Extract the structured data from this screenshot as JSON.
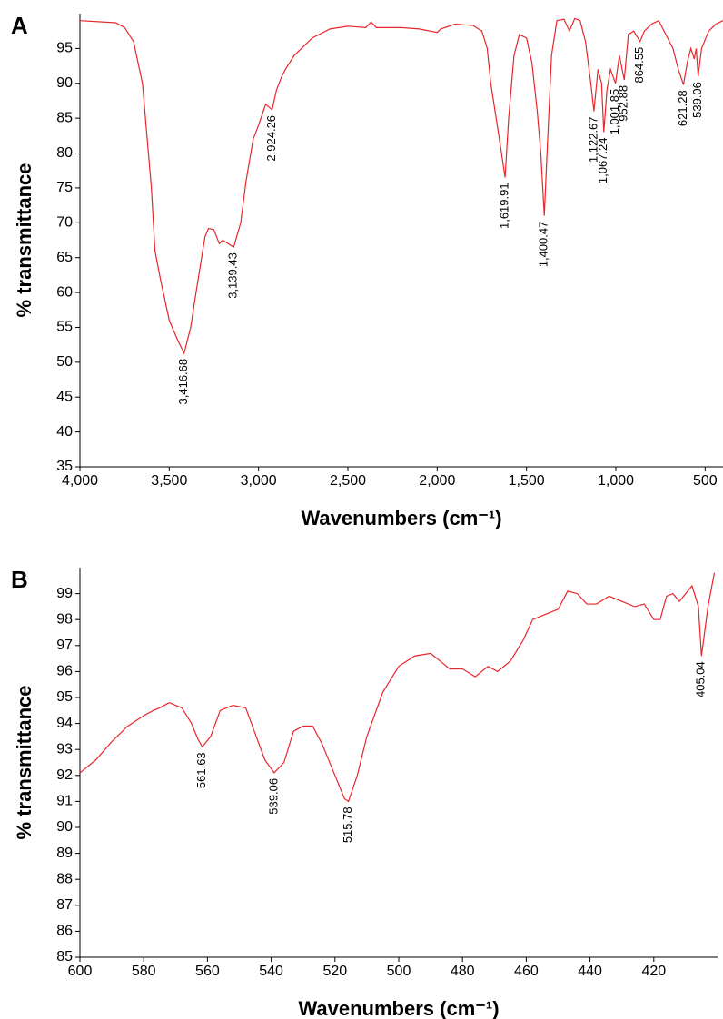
{
  "chart_data": [
    {
      "type": "line",
      "label": "A",
      "xlabel": "Wavenumbers (cm⁻¹)",
      "ylabel": "% transmittance",
      "xlim": [
        4000,
        400
      ],
      "ylim": [
        35,
        100
      ],
      "xticks": [
        {
          "value": 4000,
          "label": "4,000"
        },
        {
          "value": 3500,
          "label": "3,500"
        },
        {
          "value": 3000,
          "label": "3,000"
        },
        {
          "value": 2500,
          "label": "2,500"
        },
        {
          "value": 2000,
          "label": "2,000"
        },
        {
          "value": 1500,
          "label": "1,500"
        },
        {
          "value": 1000,
          "label": "1,000"
        },
        500
      ],
      "yticks": [
        35,
        40,
        45,
        50,
        55,
        60,
        65,
        70,
        75,
        80,
        85,
        90,
        95
      ],
      "x": [
        4000,
        3800,
        3750,
        3700,
        3650,
        3600,
        3580,
        3550,
        3500,
        3450,
        3416.68,
        3380,
        3350,
        3300,
        3280,
        3250,
        3220,
        3200,
        3170,
        3139.43,
        3100,
        3070,
        3030,
        3000,
        2960,
        2924.26,
        2900,
        2870,
        2850,
        2800,
        2700,
        2600,
        2500,
        2400,
        2370,
        2340,
        2300,
        2200,
        2100,
        2000,
        1980,
        1900,
        1800,
        1750,
        1720,
        1700,
        1670,
        1640,
        1619.91,
        1600,
        1570,
        1540,
        1500,
        1470,
        1440,
        1420,
        1400.47,
        1385,
        1360,
        1330,
        1290,
        1260,
        1230,
        1200,
        1170,
        1140,
        1122.67,
        1100,
        1080,
        1067.24,
        1050,
        1030,
        1001.85,
        980,
        952.88,
        930,
        900,
        864.55,
        840,
        800,
        760,
        720,
        680,
        650,
        621.28,
        600,
        580,
        561,
        550,
        539.06,
        520,
        480,
        440,
        400
      ],
      "series": [
        {
          "color": "#e8262b",
          "values": [
            99,
            98.7,
            98,
            96,
            90,
            75,
            66,
            62,
            56,
            53,
            51.3,
            55,
            60,
            68,
            69.2,
            69,
            67,
            67.5,
            67,
            66.5,
            70,
            76,
            82,
            84,
            87,
            86.2,
            89,
            91,
            92,
            94,
            96.5,
            97.8,
            98.2,
            98,
            98.8,
            98,
            98,
            98,
            97.8,
            97.3,
            97.8,
            98.5,
            98.3,
            97.5,
            95,
            90,
            85,
            80,
            76.5,
            85,
            94,
            97,
            96.5,
            93,
            86,
            80,
            71,
            80,
            94,
            99,
            99.2,
            97.5,
            99.3,
            99,
            96,
            90,
            86,
            92,
            90,
            83,
            89,
            92,
            90,
            94,
            90.5,
            97,
            97.5,
            96,
            97.5,
            98.5,
            99,
            97,
            95,
            92,
            89.8,
            93,
            95,
            93.5,
            95,
            91,
            95,
            97.5,
            98.5,
            99
          ]
        }
      ],
      "annotations": [
        {
          "x": 3416.68,
          "y": 51.3,
          "label": "3,416.68"
        },
        {
          "x": 3139.43,
          "y": 66.5,
          "label": "3,139.43"
        },
        {
          "x": 2924.26,
          "y": 86.2,
          "label": "2,924.26"
        },
        {
          "x": 1619.91,
          "y": 76.5,
          "label": "1,619.91"
        },
        {
          "x": 1400.47,
          "y": 71,
          "label": "1,400.47"
        },
        {
          "x": 1122.67,
          "y": 86,
          "label": "1,122.67"
        },
        {
          "x": 1067.24,
          "y": 83,
          "label": "1,067.24"
        },
        {
          "x": 1001.85,
          "y": 90,
          "label": "1,001.85"
        },
        {
          "x": 952.88,
          "y": 90.5,
          "label": "952.88"
        },
        {
          "x": 864.55,
          "y": 96,
          "label": "864.55"
        },
        {
          "x": 621.28,
          "y": 89.8,
          "label": "621.28"
        },
        {
          "x": 539.06,
          "y": 91,
          "label": "539.06"
        }
      ]
    },
    {
      "type": "line",
      "label": "B",
      "xlabel": "Wavenumbers (cm⁻¹)",
      "ylabel": "% transmittance",
      "xlim": [
        600,
        400
      ],
      "ylim": [
        85,
        100
      ],
      "xticks": [
        600,
        580,
        560,
        540,
        520,
        500,
        480,
        460,
        440,
        420
      ],
      "yticks": [
        85,
        86,
        87,
        88,
        89,
        90,
        91,
        92,
        93,
        94,
        95,
        96,
        97,
        98,
        99
      ],
      "x": [
        600,
        595,
        590,
        585,
        580,
        577,
        575,
        572,
        568,
        565,
        563,
        561.63,
        559,
        556,
        552,
        548,
        545,
        542,
        539.06,
        536,
        533,
        530,
        527,
        524,
        520,
        517,
        515.78,
        513,
        510,
        505,
        500,
        495,
        490,
        487,
        484,
        480,
        476,
        472,
        469,
        465,
        461,
        458,
        454,
        450,
        447,
        444,
        441,
        438,
        434,
        430,
        426,
        423,
        420,
        418,
        416,
        414,
        412,
        410,
        408,
        406,
        405.04,
        403,
        401
      ],
      "series": [
        {
          "color": "#e8262b",
          "values": [
            92.1,
            92.6,
            93.3,
            93.9,
            94.3,
            94.5,
            94.6,
            94.8,
            94.6,
            94.0,
            93.4,
            93.1,
            93.5,
            94.5,
            94.7,
            94.6,
            93.6,
            92.6,
            92.1,
            92.5,
            93.7,
            93.9,
            93.9,
            93.2,
            92.0,
            91.1,
            91.0,
            92,
            93.5,
            95.2,
            96.2,
            96.6,
            96.7,
            96.4,
            96.1,
            96.1,
            95.8,
            96.2,
            96.0,
            96.4,
            97.2,
            98.0,
            98.2,
            98.4,
            99.1,
            99.0,
            98.6,
            98.6,
            98.9,
            98.7,
            98.5,
            98.6,
            98.0,
            98.0,
            98.9,
            99.0,
            98.7,
            99.0,
            99.3,
            98.5,
            96.6,
            98.5,
            99.8
          ]
        }
      ],
      "annotations": [
        {
          "x": 561.63,
          "y": 93.1,
          "label": "561.63"
        },
        {
          "x": 539.06,
          "y": 92.1,
          "label": "539.06"
        },
        {
          "x": 515.78,
          "y": 91.0,
          "label": "515.78"
        },
        {
          "x": 405.04,
          "y": 96.6,
          "label": "405.04"
        }
      ]
    }
  ]
}
